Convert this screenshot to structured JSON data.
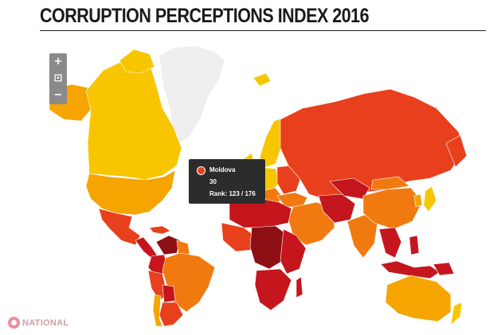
{
  "title": "CORRUPTION PERCEPTIONS INDEX 2016",
  "zoom_controls": {
    "zoom_in": "+",
    "reset": "⊡",
    "zoom_out": "−"
  },
  "tooltip": {
    "country": "Moldova",
    "score": "30",
    "rank": "Rank: 123 / 176",
    "dot_color": "#e8401c"
  },
  "logo": {
    "text": "NATIONAL",
    "color": "#c98a96"
  },
  "map_colors": {
    "very_clean": "#f7c600",
    "clean": "#f5a400",
    "moderate": "#f07a10",
    "corrupt": "#e8401c",
    "very_corrupt": "#c4161c",
    "most_corrupt": "#8e0f14",
    "no_data": "#eeeeee"
  }
}
